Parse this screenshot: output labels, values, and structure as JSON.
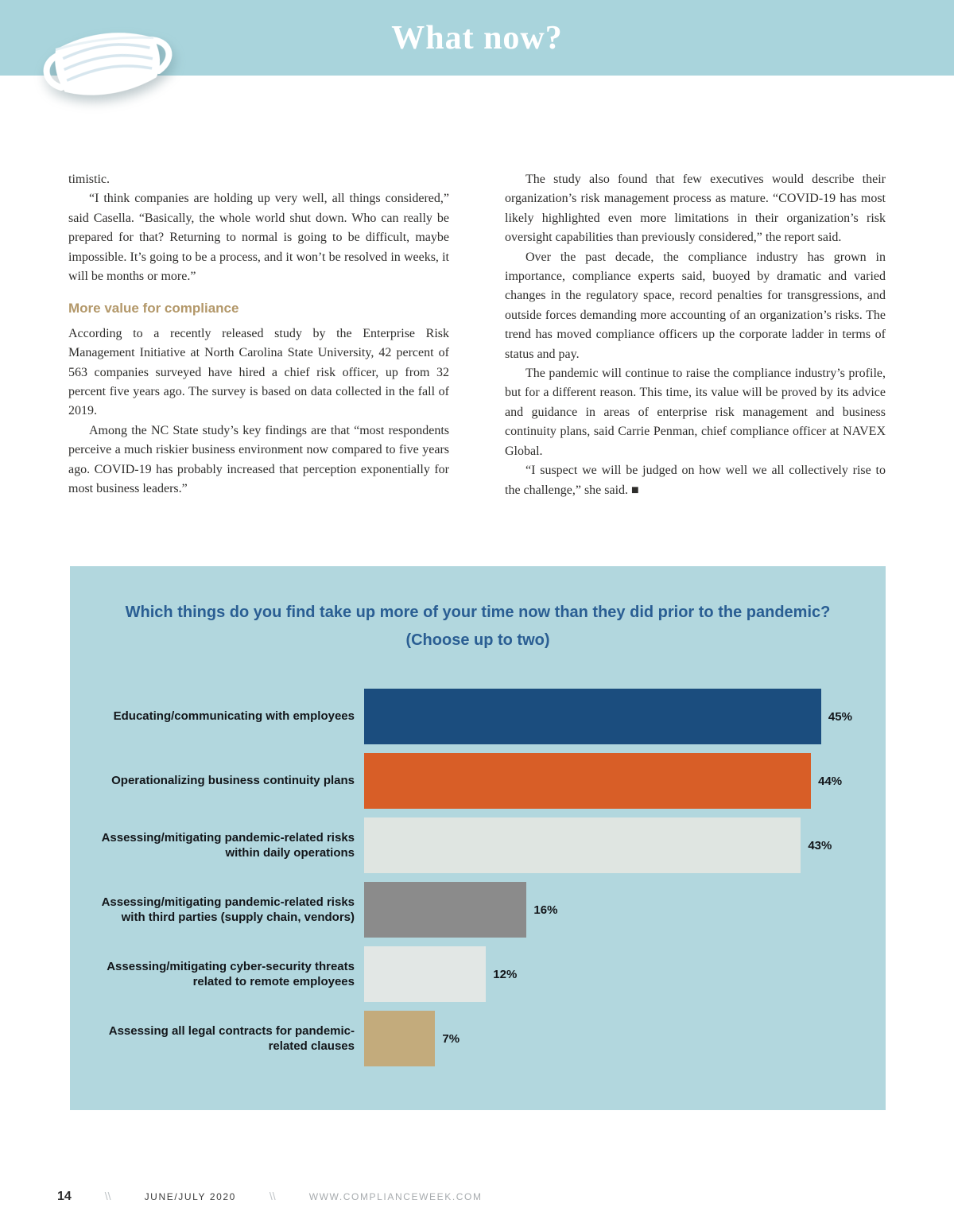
{
  "header": {
    "title": "What now?"
  },
  "article": {
    "left": {
      "p1": "timistic.",
      "p2": "“I think companies are holding up very well, all things considered,” said Casella. “Basically, the whole world shut down. Who can really be prepared for that? Returning to normal is going to be difficult, maybe impossible. It’s going to be a process, and it won’t be resolved in weeks, it will be months or more.”",
      "heading": "More value for compliance",
      "p3": "According to a recently released study by the Enterprise Risk Management Initiative at North Carolina State University, 42 percent of 563 companies surveyed have hired a chief risk officer, up from 32 percent five years ago. The survey is based on data collected in the fall of 2019.",
      "p4": "Among the NC State study’s key findings are that “most respondents perceive a much riskier business environment now compared to five years ago. COVID-19 has probably increased that perception exponentially for most business leaders.”"
    },
    "right": {
      "p1": "The study also found that few executives would describe their organization’s risk management process as mature. “COVID-19 has most likely highlighted even more limitations in their organization’s risk oversight capabilities than previously considered,” the report said.",
      "p2": "Over the past decade, the compliance industry has grown in importance, compliance experts said, buoyed by dramatic and varied changes in the regulatory space, record penalties for transgressions, and outside forces demanding more accounting of an organization’s risks. The trend has moved compliance officers up the corporate ladder in terms of status and pay.",
      "p3": "The pandemic will continue to raise the compliance industry’s profile, but for a different reason. This time, its value will be proved by its advice and guidance in areas of enterprise risk management and business continuity plans, said Carrie Penman, chief compliance officer at NAVEX Global.",
      "p4": "“I suspect we will be judged on how well we all collectively rise to the challenge,” she said. ■"
    }
  },
  "chart_data": {
    "type": "bar",
    "orientation": "horizontal",
    "title": "Which things do you find take up more of your time now than they did prior to the pandemic?",
    "subtitle": "(Choose up to two)",
    "categories": [
      "Educating/communicating with employees",
      "Operationalizing business continuity plans",
      "Assessing/mitigating pandemic-related risks within daily operations",
      "Assessing/mitigating pandemic-related risks with third parties (supply chain, vendors)",
      "Assessing/mitigating cyber-security threats related to remote employees",
      "Assessing all legal contracts for pandemic-related clauses"
    ],
    "values": [
      45,
      44,
      43,
      16,
      12,
      7
    ],
    "value_labels": [
      "45%",
      "44%",
      "43%",
      "16%",
      "12%",
      "7%"
    ],
    "bar_colors": [
      "#1b4d7e",
      "#d85e27",
      "#dfe5e1",
      "#8b8b8b",
      "#e2e7e5",
      "#c3ab7c"
    ],
    "xlim": [
      0,
      49
    ],
    "grid": false,
    "legend": "none",
    "background": "#b2d7de",
    "title_color": "#2a5e93"
  },
  "footer": {
    "page_number": "14",
    "separator": "\\\\",
    "issue": "JUNE/JULY 2020",
    "website": "WWW.COMPLIANCEWEEK.COM"
  },
  "colors": {
    "banner": "#a9d4dc",
    "heading_accent": "#b3986a"
  }
}
